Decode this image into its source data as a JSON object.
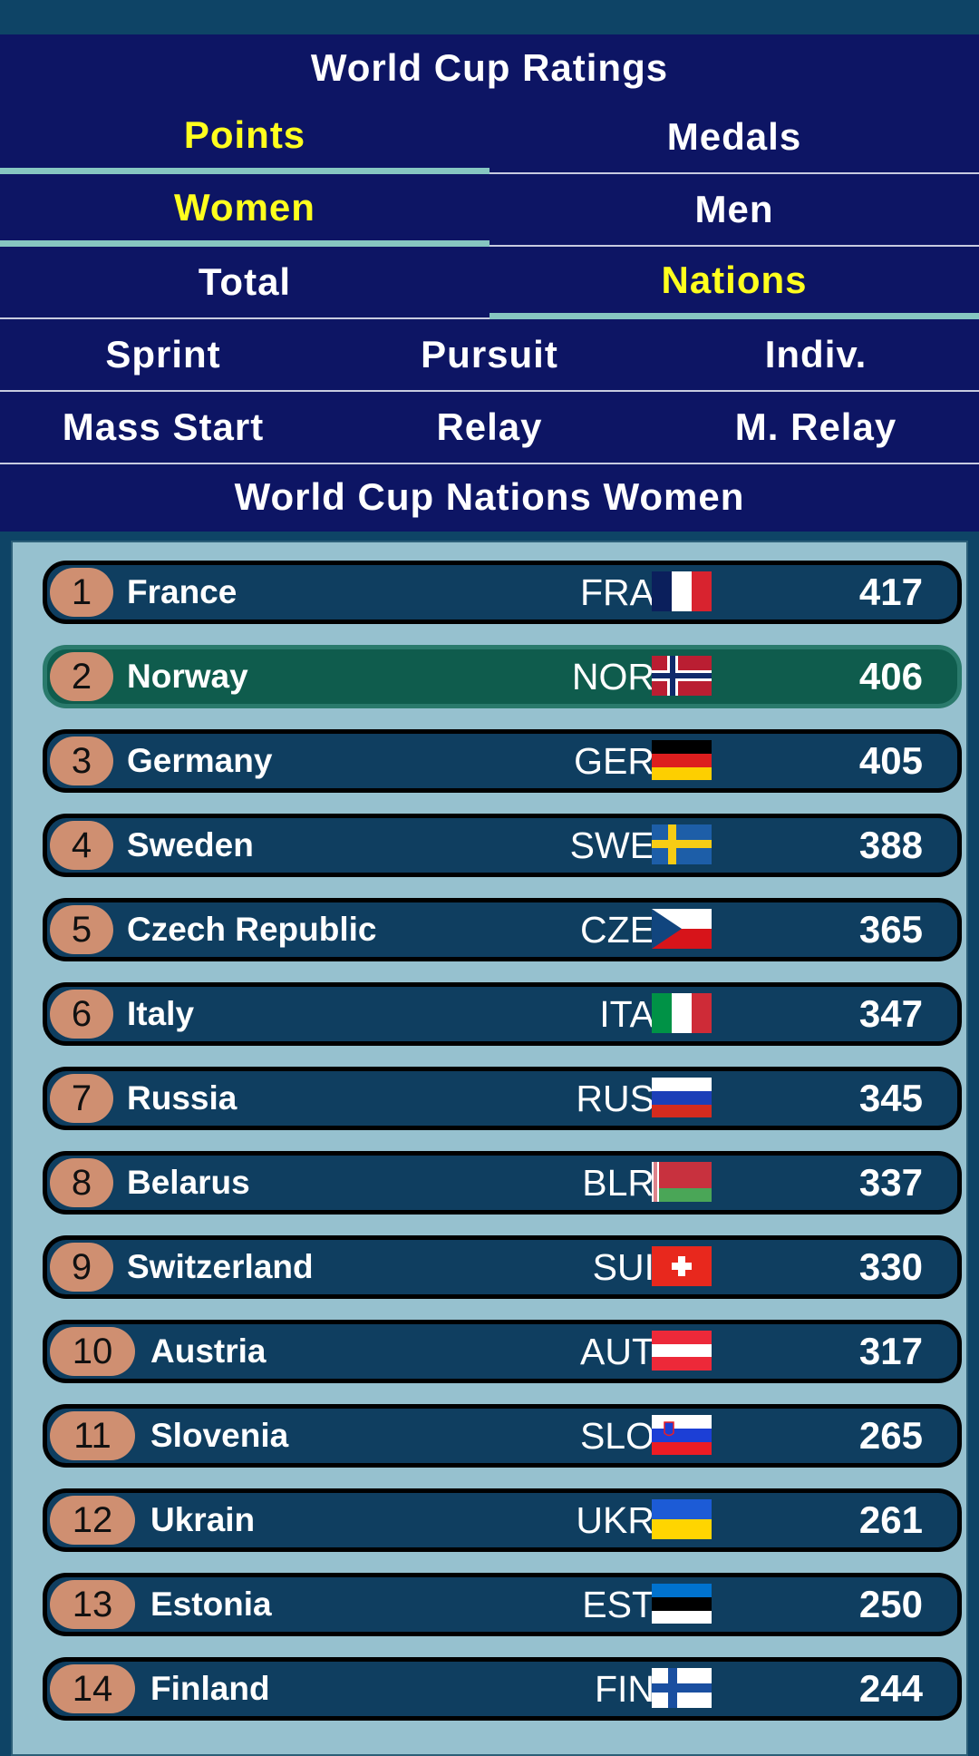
{
  "app_title": "World Cup Ratings",
  "tabs": {
    "row1": [
      "Points",
      "Medals"
    ],
    "row2": [
      "Women",
      "Men"
    ],
    "row3": [
      "Total",
      "Nations"
    ],
    "row4": [
      "Sprint",
      "Pursuit",
      "Indiv."
    ],
    "row5": [
      "Mass Start",
      "Relay",
      "M. Relay"
    ]
  },
  "active_tabs": [
    "Points",
    "Women",
    "Nations"
  ],
  "section_title": "World Cup Nations Women",
  "colors": {
    "active_tab_text": "#ffff1e",
    "tab_underline": "#86c6c1",
    "header_bg": "#0d1564",
    "row_bg": "#0f3e60",
    "row_selected_bg": "#0f5c4d",
    "rank_badge": "#cf8f71"
  },
  "rows": [
    {
      "rank": "1",
      "country": "France",
      "code": "FRA",
      "points": "417",
      "flag": "fra-flag-icon"
    },
    {
      "rank": "2",
      "country": "Norway",
      "code": "NOR",
      "points": "406",
      "flag": "nor-flag-icon",
      "selected": true
    },
    {
      "rank": "3",
      "country": "Germany",
      "code": "GER",
      "points": "405",
      "flag": "ger-flag-icon"
    },
    {
      "rank": "4",
      "country": "Sweden",
      "code": "SWE",
      "points": "388",
      "flag": "swe-flag-icon"
    },
    {
      "rank": "5",
      "country": "Czech Republic",
      "code": "CZE",
      "points": "365",
      "flag": "cze-flag-icon"
    },
    {
      "rank": "6",
      "country": "Italy",
      "code": "ITA",
      "points": "347",
      "flag": "ita-flag-icon"
    },
    {
      "rank": "7",
      "country": "Russia",
      "code": "RUS",
      "points": "345",
      "flag": "rus-flag-icon"
    },
    {
      "rank": "8",
      "country": "Belarus",
      "code": "BLR",
      "points": "337",
      "flag": "blr-flag-icon"
    },
    {
      "rank": "9",
      "country": "Switzerland",
      "code": "SUI",
      "points": "330",
      "flag": "sui-flag-icon"
    },
    {
      "rank": "10",
      "country": "Austria",
      "code": "AUT",
      "points": "317",
      "flag": "aut-flag-icon"
    },
    {
      "rank": "11",
      "country": "Slovenia",
      "code": "SLO",
      "points": "265",
      "flag": "slo-flag-icon"
    },
    {
      "rank": "12",
      "country": "Ukrain",
      "code": "UKR",
      "points": "261",
      "flag": "ukr-flag-icon"
    },
    {
      "rank": "13",
      "country": "Estonia",
      "code": "EST",
      "points": "250",
      "flag": "est-flag-icon"
    },
    {
      "rank": "14",
      "country": "Finland",
      "code": "FIN",
      "points": "244",
      "flag": "fin-flag-icon"
    }
  ]
}
